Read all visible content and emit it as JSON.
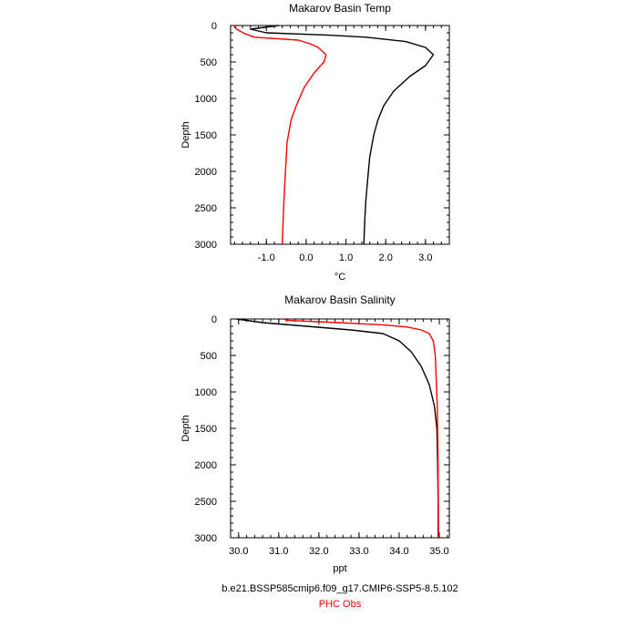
{
  "chart_data": [
    {
      "type": "line",
      "title": "Makarov Basin Temp",
      "xlabel": "°C",
      "ylabel": "Depth",
      "xlim": [
        -1.9,
        3.6
      ],
      "ylim": [
        3000,
        0
      ],
      "x_ticks": [
        -1.0,
        0.0,
        1.0,
        2.0,
        3.0
      ],
      "x_tick_labels": [
        "-1.0",
        "0.0",
        "1.0",
        "2.0",
        "3.0"
      ],
      "y_ticks": [
        0,
        500,
        1000,
        1500,
        2000,
        2500,
        3000
      ],
      "y_tick_labels": [
        "0",
        "500",
        "1000",
        "1500",
        "2000",
        "2500",
        "3000"
      ],
      "grid": false,
      "series": [
        {
          "color": "#000000",
          "points": [
            [
              -0.7,
              0
            ],
            [
              -1.4,
              50
            ],
            [
              -1.0,
              100
            ],
            [
              0.5,
              130
            ],
            [
              1.5,
              160
            ],
            [
              2.5,
              220
            ],
            [
              3.0,
              300
            ],
            [
              3.2,
              400
            ],
            [
              3.0,
              550
            ],
            [
              2.6,
              700
            ],
            [
              2.2,
              900
            ],
            [
              1.95,
              1100
            ],
            [
              1.8,
              1300
            ],
            [
              1.7,
              1500
            ],
            [
              1.6,
              1800
            ],
            [
              1.55,
              2100
            ],
            [
              1.5,
              2400
            ],
            [
              1.47,
              2700
            ],
            [
              1.45,
              3000
            ]
          ]
        },
        {
          "color": "#ff0000",
          "points": [
            [
              -1.8,
              0
            ],
            [
              -1.75,
              50
            ],
            [
              -1.55,
              110
            ],
            [
              -1.3,
              160
            ],
            [
              -0.2,
              200
            ],
            [
              0.1,
              250
            ],
            [
              0.3,
              300
            ],
            [
              0.5,
              400
            ],
            [
              0.45,
              500
            ],
            [
              0.2,
              650
            ],
            [
              -0.05,
              850
            ],
            [
              -0.25,
              1100
            ],
            [
              -0.38,
              1300
            ],
            [
              -0.48,
              1600
            ],
            [
              -0.52,
              2000
            ],
            [
              -0.56,
              2400
            ],
            [
              -0.6,
              3000
            ]
          ]
        }
      ]
    },
    {
      "type": "line",
      "title": "Makarov Basin Salinity",
      "xlabel": "ppt",
      "ylabel": "Depth",
      "xlim": [
        29.8,
        35.25
      ],
      "ylim": [
        3000,
        0
      ],
      "x_ticks": [
        30.0,
        31.0,
        32.0,
        33.0,
        34.0,
        35.0
      ],
      "x_tick_labels": [
        "30.0",
        "31.0",
        "32.0",
        "33.0",
        "34.0",
        "35.0"
      ],
      "y_ticks": [
        0,
        500,
        1000,
        1500,
        2000,
        2500,
        3000
      ],
      "y_tick_labels": [
        "0",
        "500",
        "1000",
        "1500",
        "2000",
        "2500",
        "3000"
      ],
      "grid": false,
      "series": [
        {
          "color": "#000000",
          "points": [
            [
              29.95,
              0
            ],
            [
              30.6,
              50
            ],
            [
              31.7,
              100
            ],
            [
              32.8,
              150
            ],
            [
              33.6,
              200
            ],
            [
              34.0,
              300
            ],
            [
              34.3,
              450
            ],
            [
              34.55,
              650
            ],
            [
              34.75,
              900
            ],
            [
              34.88,
              1200
            ],
            [
              34.94,
              1500
            ],
            [
              34.96,
              2000
            ],
            [
              34.97,
              2500
            ],
            [
              34.97,
              3000
            ]
          ]
        },
        {
          "color": "#ff0000",
          "points": [
            [
              31.1,
              0
            ],
            [
              31.25,
              20
            ],
            [
              32.5,
              50
            ],
            [
              33.6,
              80
            ],
            [
              34.2,
              110
            ],
            [
              34.55,
              150
            ],
            [
              34.75,
              200
            ],
            [
              34.85,
              300
            ],
            [
              34.9,
              500
            ],
            [
              34.92,
              800
            ],
            [
              34.95,
              1200
            ],
            [
              34.97,
              2000
            ],
            [
              34.98,
              3000
            ]
          ]
        }
      ]
    }
  ],
  "legend": {
    "model": {
      "label": "b.e21.BSSP585cmip6.f09_g17.CMIP6-SSP5-8.5.102",
      "color": "#000000"
    },
    "obs": {
      "label": "PHC Obs",
      "color": "#ff0000"
    }
  }
}
